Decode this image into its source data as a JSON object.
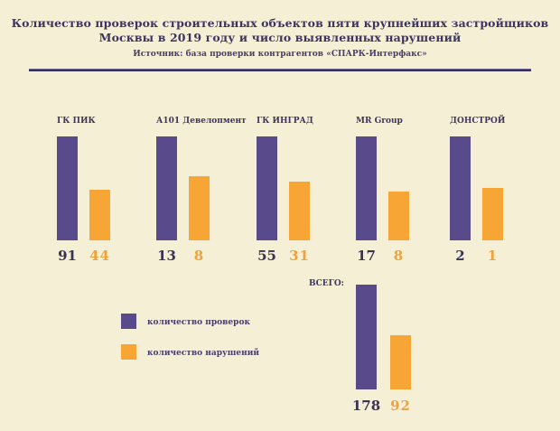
{
  "header": {
    "title_line1": "Количество проверок строительных объектов пяти крупнейших застройщиков",
    "title_line2": "Москвы в 2019 году и число выявленных нарушений",
    "source": "Источник: база проверки контрагентов «СПАРК-Интерфакс»"
  },
  "colors": {
    "checks": "#594a8b",
    "violations": "#f7a535",
    "background": "#f5efd6",
    "text": "#3d355f"
  },
  "chart_data": {
    "type": "bar",
    "title": "Количество проверок строительных объектов пяти крупнейших застройщиков Москвы в 2019 году и число выявленных нарушений",
    "subtitle": "Источник: база проверки контрагентов «СПАРК-Интерфакс»",
    "xlabel": "",
    "ylabel": "",
    "grid": false,
    "legend_position": "bottom-left",
    "categories": [
      "ГК ПИК",
      "А101 Девелопмент",
      "ГК ИНГРАД",
      "MR Group",
      "ДОНСТРОЙ"
    ],
    "series": [
      {
        "name": "количество проверок",
        "values": [
          91,
          13,
          55,
          17,
          2
        ]
      },
      {
        "name": "количество нарушений",
        "values": [
          44,
          8,
          31,
          8,
          1
        ]
      }
    ],
    "total": {
      "label": "ВСЕГО:",
      "checks": 178,
      "violations": 92
    }
  }
}
